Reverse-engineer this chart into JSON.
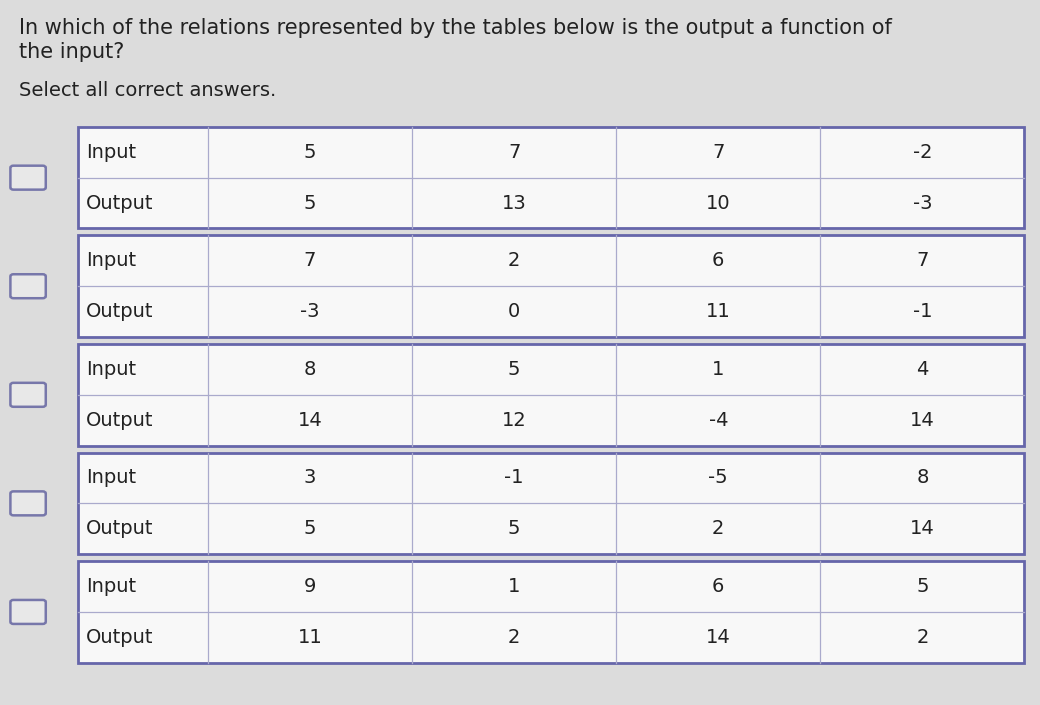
{
  "title_line1": "In which of the relations represented by the tables below is the output a function of",
  "title_line2": "the input?",
  "subtitle": "Select all correct answers.",
  "background_color": "#dcdcdc",
  "table_bg_color": "#f0f0f0",
  "tables": [
    {
      "rows": [
        [
          "Input",
          "5",
          "7",
          "7",
          "-2"
        ],
        [
          "Output",
          "5",
          "13",
          "10",
          "-3"
        ]
      ]
    },
    {
      "rows": [
        [
          "Input",
          "7",
          "2",
          "6",
          "7"
        ],
        [
          "Output",
          "-3",
          "0",
          "11",
          "-1"
        ]
      ]
    },
    {
      "rows": [
        [
          "Input",
          "8",
          "5",
          "1",
          "4"
        ],
        [
          "Output",
          "14",
          "12",
          "-4",
          "14"
        ]
      ]
    },
    {
      "rows": [
        [
          "Input",
          "3",
          "-1",
          "-5",
          "8"
        ],
        [
          "Output",
          "5",
          "5",
          "2",
          "14"
        ]
      ]
    },
    {
      "rows": [
        [
          "Input",
          "9",
          "1",
          "6",
          "5"
        ],
        [
          "Output",
          "11",
          "2",
          "14",
          "2"
        ]
      ]
    }
  ],
  "checkbox_color": "#e8e8e8",
  "checkbox_border": "#7777aa",
  "table_border_color": "#6666aa",
  "inner_line_color": "#aaaacc",
  "title_fontsize": 15,
  "subtitle_fontsize": 14,
  "cell_fontsize": 14,
  "label_fontsize": 14,
  "text_color": "#222222"
}
